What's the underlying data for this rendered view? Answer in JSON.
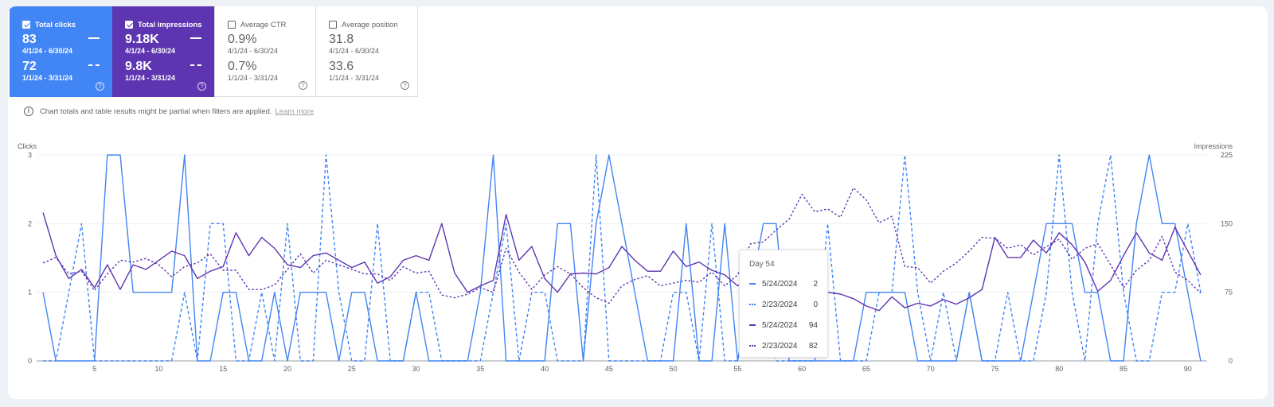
{
  "cards": {
    "clicks": {
      "label": "Total clicks",
      "value1": "83",
      "range1": "4/1/24 - 6/30/24",
      "value2": "72",
      "range2": "1/1/24 - 3/31/24",
      "checked": true,
      "help": "?"
    },
    "impressions": {
      "label": "Total impressions",
      "value1": "9.18K",
      "range1": "4/1/24 - 6/30/24",
      "value2": "9.8K",
      "range2": "1/1/24 - 3/31/24",
      "checked": true,
      "help": "?"
    },
    "ctr": {
      "label": "Average CTR",
      "value1": "0.9%",
      "range1": "4/1/24 - 6/30/24",
      "value2": "0.7%",
      "range2": "1/1/24 - 3/31/24",
      "checked": false,
      "help": "?"
    },
    "position": {
      "label": "Average position",
      "value1": "31.8",
      "range1": "4/1/24 - 6/30/24",
      "value2": "33.6",
      "range2": "1/1/24 - 3/31/24",
      "checked": false,
      "help": "?"
    }
  },
  "notice": {
    "icon": "info-icon",
    "text": "Chart totals and table results might be partial when filters are applied.",
    "link": "Learn more"
  },
  "colors": {
    "clicks": "#4285f4",
    "impressions": "#5e35b1"
  },
  "tooltip": {
    "title": "Day 54",
    "rows": [
      {
        "date": "5/24/2024",
        "value": "2"
      },
      {
        "date": "2/23/2024",
        "value": "0"
      },
      {
        "date": "5/24/2024",
        "value": "94"
      },
      {
        "date": "2/23/2024",
        "value": "82"
      }
    ]
  },
  "chart_data": {
    "type": "line",
    "xlabel": "",
    "ylabel": "Clicks",
    "y2label": "Impressions",
    "ylim": [
      0,
      3
    ],
    "y2lim": [
      0,
      225
    ],
    "yticks": [
      0,
      1,
      2,
      3
    ],
    "y2ticks": [
      0,
      75,
      150,
      225
    ],
    "xticks": [
      5,
      10,
      15,
      20,
      25,
      30,
      35,
      40,
      45,
      50,
      55,
      60,
      65,
      70,
      75,
      80,
      85,
      90
    ],
    "x": [
      1,
      2,
      3,
      4,
      5,
      6,
      7,
      8,
      9,
      10,
      11,
      12,
      13,
      14,
      15,
      16,
      17,
      18,
      19,
      20,
      21,
      22,
      23,
      24,
      25,
      26,
      27,
      28,
      29,
      30,
      31,
      32,
      33,
      34,
      35,
      36,
      37,
      38,
      39,
      40,
      41,
      42,
      43,
      44,
      45,
      46,
      47,
      48,
      49,
      50,
      51,
      52,
      53,
      54,
      55,
      56,
      57,
      58,
      59,
      60,
      61,
      62,
      63,
      64,
      65,
      66,
      67,
      68,
      69,
      70,
      71,
      72,
      73,
      74,
      75,
      76,
      77,
      78,
      79,
      80,
      81,
      82,
      83,
      84,
      85,
      86,
      87,
      88,
      89,
      90,
      91
    ],
    "grid": true,
    "series": [
      {
        "axis": "left",
        "style": "solid",
        "color": "#4285f4",
        "values": [
          1,
          0,
          0,
          0,
          0,
          3,
          3,
          1,
          1,
          1,
          1,
          3,
          0,
          0,
          1,
          1,
          0,
          0,
          1,
          0,
          1,
          1,
          1,
          0,
          1,
          1,
          0,
          0,
          0,
          1,
          0,
          0,
          0,
          0,
          1,
          3,
          0,
          0,
          0,
          0,
          2,
          2,
          0,
          2,
          3,
          2,
          1,
          0,
          0,
          0,
          2,
          0,
          0,
          2,
          0,
          1,
          2,
          2,
          0,
          0,
          0,
          0,
          0,
          0,
          1,
          1,
          1,
          1,
          0,
          0,
          0,
          0,
          1,
          0,
          0,
          0,
          0,
          1,
          2,
          2,
          2,
          1,
          1,
          0,
          0,
          2,
          3,
          2,
          2,
          1,
          0
        ]
      },
      {
        "axis": "left",
        "style": "dashed",
        "color": "#4285f4",
        "values": [
          0,
          0,
          1,
          2,
          0,
          0,
          0,
          0,
          0,
          0,
          0,
          1,
          0,
          2,
          2,
          0,
          0,
          1,
          0,
          2,
          0,
          0,
          3,
          1,
          0,
          0,
          2,
          0,
          0,
          1,
          1,
          0,
          0,
          0,
          0,
          1,
          2,
          0,
          1,
          1,
          0,
          0,
          0,
          3,
          0,
          0,
          0,
          0,
          0,
          1,
          1,
          0,
          2,
          0,
          0,
          1,
          1,
          0,
          0,
          0,
          0,
          2,
          0,
          0,
          0,
          1,
          1,
          3,
          1,
          0,
          1,
          0,
          1,
          0,
          0,
          1,
          0,
          0,
          1,
          3,
          1,
          0,
          2,
          3,
          1,
          0,
          0,
          1,
          1,
          2,
          1
        ]
      },
      {
        "axis": "right",
        "style": "solid",
        "color": "#5e35b1",
        "values": [
          162,
          115,
          90,
          100,
          80,
          105,
          78,
          105,
          100,
          110,
          120,
          115,
          90,
          98,
          103,
          140,
          115,
          135,
          123,
          105,
          102,
          115,
          118,
          110,
          102,
          108,
          85,
          92,
          110,
          115,
          110,
          150,
          96,
          75,
          82,
          88,
          160,
          110,
          125,
          90,
          75,
          95,
          96,
          95,
          102,
          125,
          110,
          98,
          98,
          120,
          103,
          108,
          99,
          94,
          82,
          90,
          95,
          90,
          88,
          85,
          65,
          75,
          73,
          68,
          60,
          55,
          70,
          58,
          63,
          60,
          67,
          62,
          69,
          78,
          135,
          113,
          113,
          132,
          118,
          140,
          127,
          108,
          76,
          88,
          115,
          140,
          118,
          110,
          146,
          120,
          94
        ]
      },
      {
        "axis": "right",
        "style": "dotted",
        "color": "#5e35b1",
        "values": [
          107,
          113,
          95,
          98,
          77,
          95,
          110,
          108,
          112,
          105,
          92,
          103,
          107,
          117,
          99,
          99,
          78,
          78,
          83,
          100,
          117,
          96,
          110,
          105,
          100,
          95,
          95,
          88,
          103,
          96,
          98,
          72,
          69,
          73,
          80,
          75,
          123,
          97,
          78,
          94,
          103,
          95,
          80,
          69,
          63,
          82,
          89,
          93,
          82,
          85,
          88,
          86,
          97,
          82,
          94,
          128,
          130,
          143,
          155,
          182,
          163,
          166,
          157,
          189,
          176,
          151,
          158,
          103,
          102,
          85,
          98,
          107,
          120,
          135,
          134,
          123,
          127,
          116,
          125,
          133,
          111,
          123,
          128,
          105,
          80,
          99,
          110,
          136,
          97,
          88,
          74
        ]
      }
    ]
  }
}
